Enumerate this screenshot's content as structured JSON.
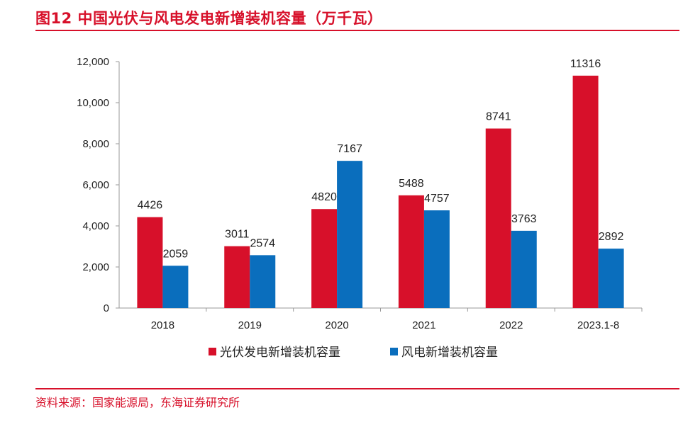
{
  "title": "图12  中国光伏与风电发电新增装机容量（万千瓦）",
  "source": "资料来源：国家能源局，东海证券研究所",
  "chart_data": {
    "type": "bar",
    "title": "图12  中国光伏与风电发电新增装机容量（万千瓦）",
    "categories": [
      "2018",
      "2019",
      "2020",
      "2021",
      "2022",
      "2023.1-8"
    ],
    "series": [
      {
        "name": "光伏发电新增装机容量",
        "color": "#d7102a",
        "values": [
          4426,
          3011,
          4820,
          5488,
          8741,
          11316
        ]
      },
      {
        "name": "风电新增装机容量",
        "color": "#0a6ebd",
        "values": [
          2059,
          2574,
          7167,
          4757,
          3763,
          2892
        ]
      }
    ],
    "ylim": [
      0,
      12000
    ],
    "yticks": [
      0,
      2000,
      4000,
      6000,
      8000,
      10000,
      12000
    ],
    "ytick_labels": [
      "0",
      "2,000",
      "4,000",
      "6,000",
      "8,000",
      "10,000",
      "12,000"
    ],
    "grid": false,
    "legend": "bottom",
    "data_labels": true
  }
}
